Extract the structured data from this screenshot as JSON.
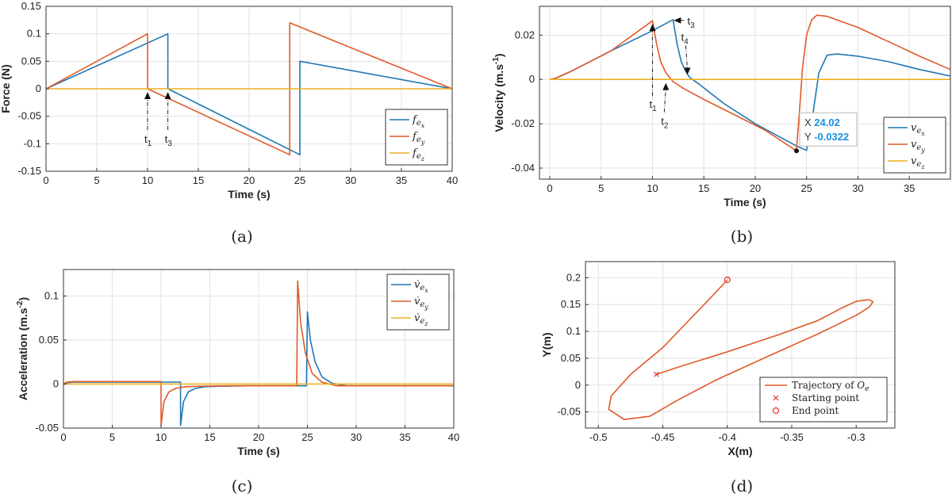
{
  "colors": {
    "blue": "#1f77b4",
    "orange": "#e05a28",
    "yellow": "#edb120",
    "grid": "#e2e2e2",
    "datatip": "#1a8fe3"
  },
  "chart_data": [
    {
      "id": "a",
      "type": "line",
      "caption": "(a)",
      "xlabel": "Time (s)",
      "ylabel": "Force (N)",
      "xlim": [
        0,
        40
      ],
      "ylim": [
        -0.15,
        0.15
      ],
      "xticks": [
        0,
        5,
        10,
        15,
        20,
        25,
        30,
        35,
        40
      ],
      "yticks": [
        0.15,
        0.1,
        0.05,
        0,
        -0.05,
        -0.1,
        -0.15
      ],
      "grid": true,
      "legend_position": "bottom-right",
      "series": [
        {
          "name": "f_ex",
          "legend_main": "f",
          "legend_sub": "e",
          "legend_subsub": "x",
          "color": "blue",
          "x": [
            0,
            12,
            12,
            25,
            25,
            40
          ],
          "y": [
            0,
            0.1,
            0,
            -0.12,
            0.05,
            0
          ]
        },
        {
          "name": "f_ey",
          "legend_main": "f",
          "legend_sub": "e",
          "legend_subsub": "y",
          "color": "orange",
          "x": [
            0,
            10,
            10,
            24,
            24,
            40
          ],
          "y": [
            0,
            0.1,
            0,
            -0.12,
            0.12,
            0
          ]
        },
        {
          "name": "f_ez",
          "legend_main": "f",
          "legend_sub": "e",
          "legend_subsub": "z",
          "color": "yellow",
          "x": [
            0,
            40
          ],
          "y": [
            0,
            0
          ]
        }
      ],
      "annotations": [
        {
          "label": "t",
          "sub": "1",
          "x": 10,
          "y": 0
        },
        {
          "label": "t",
          "sub": "3",
          "x": 12,
          "y": 0
        }
      ]
    },
    {
      "id": "b",
      "type": "line",
      "caption": "(b)",
      "xlabel": "Time (s)",
      "ylabel": "Velocity (m.s",
      "ylabel_sup": "-1",
      "ylabel_end": ")",
      "xlim": [
        -1,
        39
      ],
      "ylim": [
        -0.045,
        0.033
      ],
      "xticks": [
        0,
        5,
        10,
        15,
        20,
        25,
        30,
        35
      ],
      "yticks": [
        0.02,
        0,
        -0.02,
        -0.04
      ],
      "grid": true,
      "legend_position": "bottom-right",
      "series": [
        {
          "name": "v_ex",
          "legend_main": "v",
          "legend_sub": "e",
          "legend_subsub": "x",
          "color": "blue",
          "x": [
            0,
            0.5,
            2,
            6,
            10,
            12,
            12.4,
            12.8,
            13.2,
            13.6,
            14.5,
            17,
            20,
            24,
            25,
            25.6,
            26.2,
            27,
            28,
            30,
            33,
            36,
            39
          ],
          "y": [
            0,
            0.0004,
            0.0035,
            0.013,
            0.022,
            0.027,
            0.016,
            0.008,
            0.004,
            0.001,
            -0.002,
            -0.011,
            -0.02,
            -0.03,
            -0.032,
            -0.016,
            0.003,
            0.011,
            0.0115,
            0.0105,
            0.008,
            0.0045,
            0.0015
          ]
        },
        {
          "name": "v_ey",
          "legend_main": "v",
          "legend_sub": "e",
          "legend_subsub": "y",
          "color": "orange",
          "x": [
            0,
            0.5,
            2,
            6,
            10,
            10.4,
            10.8,
            11.3,
            12,
            13,
            15,
            18,
            21,
            24,
            24.3,
            24.6,
            25,
            25.5,
            26,
            27,
            30,
            33,
            36,
            39
          ],
          "y": [
            0,
            0.0004,
            0.0035,
            0.013,
            0.0265,
            0.016,
            0.008,
            0.003,
            -0.001,
            -0.004,
            -0.009,
            -0.016,
            -0.023,
            -0.0322,
            -0.015,
            0.005,
            0.02,
            0.027,
            0.029,
            0.0285,
            0.0235,
            0.017,
            0.0105,
            0.0045
          ]
        },
        {
          "name": "v_ez",
          "legend_main": "v",
          "legend_sub": "e",
          "legend_subsub": "z",
          "color": "yellow",
          "x": [
            0,
            39
          ],
          "y": [
            0,
            0
          ]
        }
      ],
      "annotations": [
        {
          "label": "t",
          "sub": "1",
          "x": 10,
          "y": 0.0265
        },
        {
          "label": "t",
          "sub": "2",
          "x": 11.3,
          "y": -0.0005
        },
        {
          "label": "t",
          "sub": "3",
          "x": 12,
          "y": 0.027
        },
        {
          "label": "t",
          "sub": "4",
          "x": 13.4,
          "y": 0.001
        }
      ],
      "datatip": {
        "x": 24.02,
        "y": -0.0322,
        "x_label": "X",
        "y_label": "Y",
        "x_text": "24.02",
        "y_text": "-0.0322"
      }
    },
    {
      "id": "c",
      "type": "line",
      "caption": "(c)",
      "xlabel": "Time (s)",
      "ylabel": "Acceleration (m.s",
      "ylabel_sup": "-2",
      "ylabel_end": ")",
      "xlim": [
        0,
        40
      ],
      "ylim": [
        -0.05,
        0.13
      ],
      "xticks": [
        0,
        5,
        10,
        15,
        20,
        25,
        30,
        35,
        40
      ],
      "yticks": [
        0.1,
        0.05,
        0,
        -0.05
      ],
      "grid": true,
      "legend_position": "top-right",
      "series": [
        {
          "name": "vdot_ex",
          "legend_main": "v̇",
          "legend_sub": "e",
          "legend_subsub": "x",
          "color": "blue",
          "x": [
            0,
            0.3,
            1,
            12,
            12,
            12.3,
            12.8,
            13.5,
            14.5,
            16,
            19,
            24.9,
            25,
            25.3,
            25.8,
            26.5,
            27.5,
            29,
            40
          ],
          "y": [
            0,
            0.0015,
            0.0022,
            0.0022,
            -0.047,
            -0.02,
            -0.009,
            -0.005,
            -0.003,
            -0.0025,
            -0.002,
            -0.002,
            0.082,
            0.05,
            0.025,
            0.008,
            0.001,
            -0.002,
            -0.002
          ]
        },
        {
          "name": "vdot_ey",
          "legend_main": "v̇",
          "legend_sub": "e",
          "legend_subsub": "y",
          "color": "orange",
          "x": [
            0,
            0.3,
            1,
            10,
            10,
            10.3,
            10.8,
            11.5,
            12.5,
            14,
            17,
            23.9,
            24,
            24.3,
            24.8,
            25.5,
            26.5,
            28,
            40
          ],
          "y": [
            0,
            0.002,
            0.0028,
            0.0028,
            -0.047,
            -0.02,
            -0.009,
            -0.005,
            -0.003,
            -0.0025,
            -0.002,
            -0.002,
            0.117,
            0.07,
            0.035,
            0.012,
            0.002,
            -0.002,
            -0.002
          ]
        },
        {
          "name": "vdot_ez",
          "legend_main": "v̇",
          "legend_sub": "e",
          "legend_subsub": "z",
          "color": "yellow",
          "x": [
            0,
            40
          ],
          "y": [
            0,
            0
          ]
        }
      ]
    },
    {
      "id": "d",
      "type": "line",
      "caption": "(d)",
      "xlabel": "X(m)",
      "ylabel": "Y(m)",
      "xlim": [
        -0.51,
        -0.27
      ],
      "ylim": [
        -0.08,
        0.23
      ],
      "xticks": [
        -0.5,
        -0.45,
        -0.4,
        -0.35,
        -0.3
      ],
      "yticks": [
        0.2,
        0.15,
        0.1,
        0.05,
        0,
        -0.05
      ],
      "grid": true,
      "legend_position": "bottom-right",
      "series": [
        {
          "name": "Trajectory of O_e",
          "legend_text": "Trajectory of ",
          "legend_italic": "O",
          "legend_sub": "e",
          "color": "orange",
          "x": [
            -0.455,
            -0.44,
            -0.4,
            -0.36,
            -0.33,
            -0.31,
            -0.3,
            -0.29,
            -0.287,
            -0.29,
            -0.3,
            -0.33,
            -0.37,
            -0.41,
            -0.44,
            -0.46,
            -0.48,
            -0.492,
            -0.49,
            -0.475,
            -0.45,
            -0.43,
            -0.41,
            -0.4
          ],
          "y": [
            0.02,
            0.032,
            0.062,
            0.094,
            0.12,
            0.145,
            0.156,
            0.159,
            0.155,
            0.145,
            0.13,
            0.095,
            0.052,
            0.008,
            -0.03,
            -0.058,
            -0.064,
            -0.045,
            -0.02,
            0.02,
            0.07,
            0.12,
            0.17,
            0.196
          ]
        },
        {
          "name": "Starting point",
          "legend_text": "Starting point",
          "marker": "x",
          "color": "orange",
          "x": [
            -0.455
          ],
          "y": [
            0.02
          ]
        },
        {
          "name": "End point",
          "legend_text": "End point",
          "marker": "o",
          "color": "orange",
          "x": [
            -0.4
          ],
          "y": [
            0.196
          ]
        }
      ]
    }
  ]
}
